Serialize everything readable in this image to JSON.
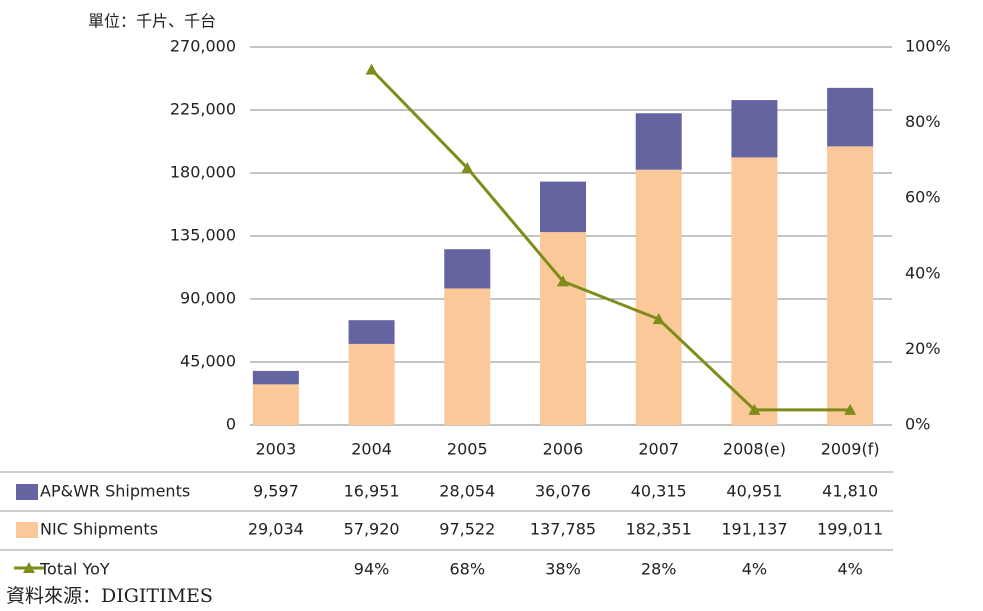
{
  "chart_data": {
    "type": "bar",
    "unit_label": "單位：千片、千台",
    "source": "資料來源：DIGITIMES",
    "categories": [
      "2003",
      "2004",
      "2005",
      "2006",
      "2007",
      "2008(e)",
      "2009(f)"
    ],
    "series": [
      {
        "name": "NIC Shipments",
        "color": "#fbc999",
        "values": [
          29034,
          57920,
          97522,
          137785,
          182351,
          191137,
          199011
        ],
        "value_labels": [
          "29,034",
          "57,920",
          "97,522",
          "137,785",
          "182,351",
          "191,137",
          "199,011"
        ]
      },
      {
        "name": "AP&WR Shipments",
        "color": "#6464a0",
        "values": [
          9597,
          16951,
          28054,
          36076,
          40315,
          40951,
          41810
        ],
        "value_labels": [
          "9,597",
          "16,951",
          "28,054",
          "36,076",
          "40,315",
          "40,951",
          "41,810"
        ]
      },
      {
        "name": "Total YoY",
        "type": "line",
        "axis": "y2",
        "color": "#7f8c1a",
        "values": [
          null,
          94,
          68,
          38,
          28,
          4,
          4
        ],
        "value_labels": [
          null,
          "94%",
          "68%",
          "38%",
          "28%",
          "4%",
          "4%"
        ]
      }
    ],
    "stacked": true,
    "ylim": [
      0,
      270000
    ],
    "yticks": [
      0,
      {
        "value": 45000,
        "label": "45,000"
      },
      {
        "value": 90000,
        "label": "90,000"
      },
      {
        "value": 135000,
        "label": "135,000"
      },
      {
        "value": 180000,
        "label": "180,000"
      },
      {
        "value": 225000,
        "label": "225,000"
      },
      {
        "value": 270000,
        "label": "270,000"
      }
    ],
    "y2lim": [
      0,
      100
    ],
    "y2ticks": [
      {
        "value": 0,
        "label": "0%"
      },
      {
        "value": 20,
        "label": "20%"
      },
      {
        "value": 40,
        "label": "40%"
      },
      {
        "value": 60,
        "label": "60%"
      },
      {
        "value": 80,
        "label": "80%"
      },
      {
        "value": 100,
        "label": "100%"
      }
    ],
    "grid": true
  }
}
